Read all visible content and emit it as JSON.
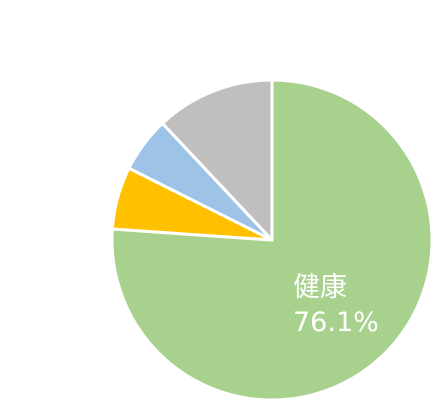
{
  "chart_data": {
    "type": "pie",
    "title": "",
    "start_angle_deg": 0,
    "direction": "clockwise",
    "slices": [
      {
        "name": "健康",
        "value": 76.1,
        "color": "#A9D18E",
        "label": "76.1%"
      },
      {
        "name": "",
        "value": 6.3,
        "color": "#FFC000",
        "label": ""
      },
      {
        "name": "",
        "value": 5.6,
        "color": "#9DC3E6",
        "label": ""
      },
      {
        "name": "",
        "value": 12.0,
        "color": "#BFBFBF",
        "label": ""
      }
    ]
  }
}
